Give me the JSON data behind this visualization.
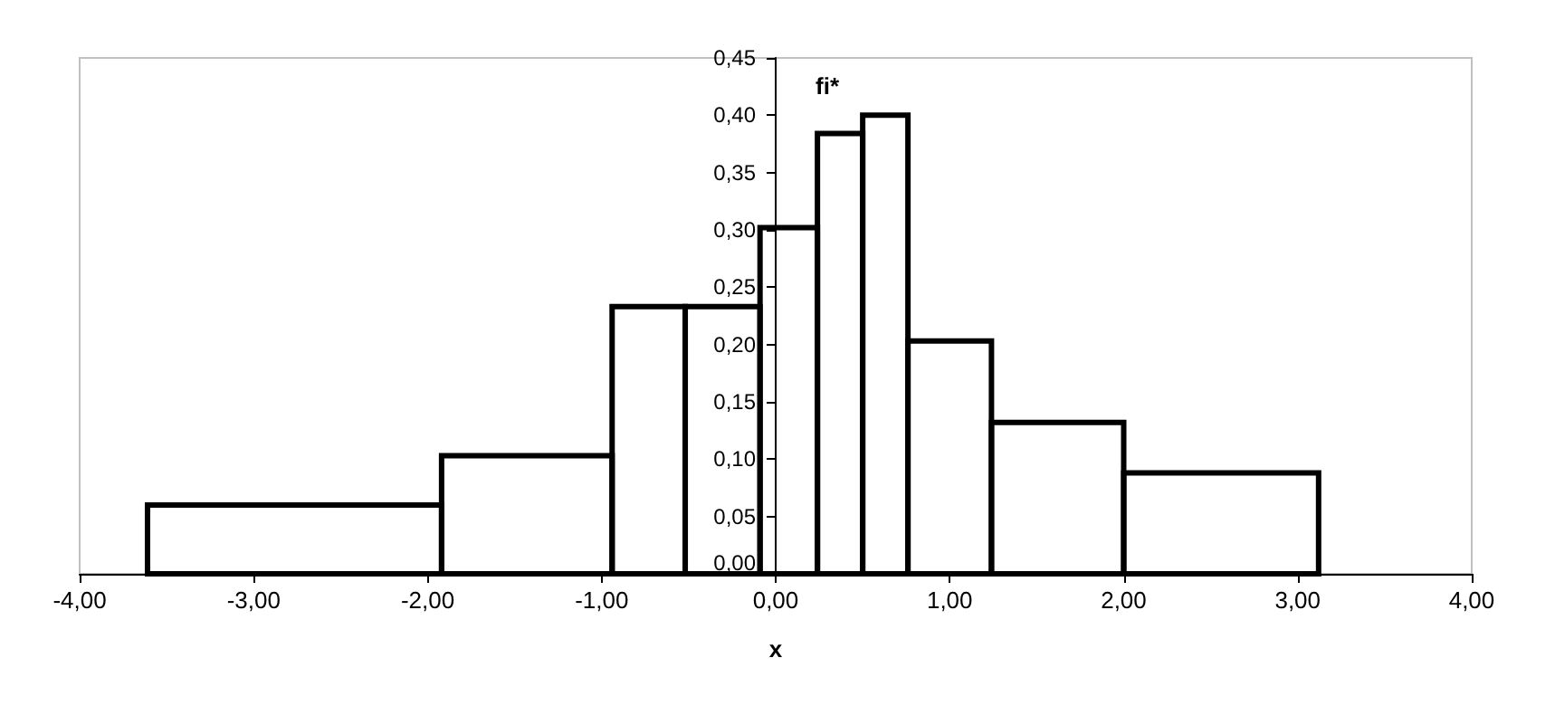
{
  "chart_data": {
    "type": "histogram",
    "xlabel": "x",
    "ylabel": "fi*",
    "bins": [
      -3.61,
      -1.92,
      -0.94,
      -0.52,
      -0.09,
      0.24,
      0.5,
      0.76,
      1.24,
      2.0,
      3.12
    ],
    "values": [
      0.06,
      0.103,
      0.233,
      0.233,
      0.302,
      0.384,
      0.4,
      0.203,
      0.132,
      0.088
    ],
    "color": "#000000",
    "xlim": [
      -4,
      4
    ],
    "xticks": [
      {
        "value": -4,
        "label": "-4,00"
      },
      {
        "value": -3,
        "label": "-3,00"
      },
      {
        "value": -2,
        "label": "-2,00"
      },
      {
        "value": -1,
        "label": "-1,00"
      },
      {
        "value": 0,
        "label": "0,00"
      },
      {
        "value": 1,
        "label": "1,00"
      },
      {
        "value": 2,
        "label": "2,00"
      },
      {
        "value": 3,
        "label": "3,00"
      },
      {
        "value": 4,
        "label": "4,00"
      }
    ],
    "ylim": [
      0,
      0.45
    ],
    "yticks": [
      {
        "value": 0,
        "label": "0,00"
      },
      {
        "value": 0.05,
        "label": "0,05"
      },
      {
        "value": 0.1,
        "label": "0,10"
      },
      {
        "value": 0.15,
        "label": "0,15"
      },
      {
        "value": 0.2,
        "label": "0,20"
      },
      {
        "value": 0.25,
        "label": "0,25"
      },
      {
        "value": 0.3,
        "label": "0,30"
      },
      {
        "value": 0.35,
        "label": "0,35"
      },
      {
        "value": 0.4,
        "label": "0,40"
      },
      {
        "value": 0.45,
        "label": "0,45"
      }
    ],
    "grid": false
  }
}
